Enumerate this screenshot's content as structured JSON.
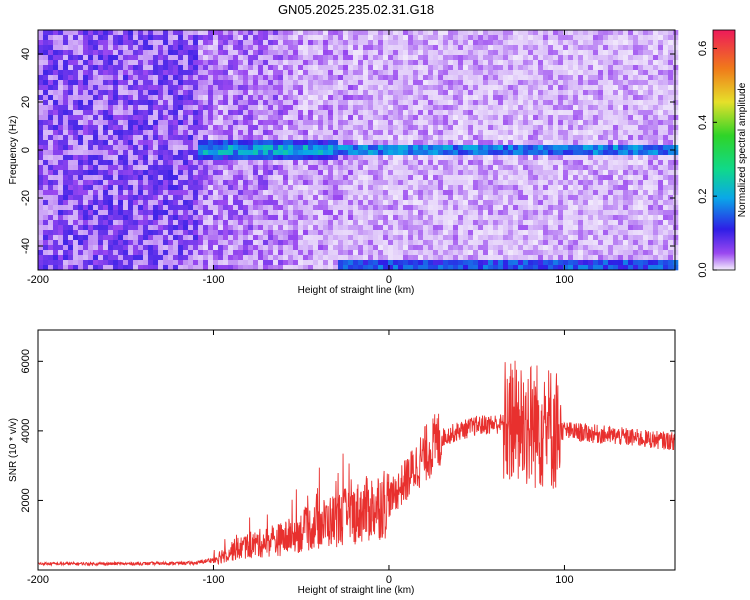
{
  "title": "GN05.2025.235.02.31.G18",
  "chart_data": [
    {
      "type": "heatmap",
      "xlabel": "Height of straight line (km)",
      "ylabel": "Frequency (Hz)",
      "xlim": [
        -200,
        163
      ],
      "ylim": [
        -50,
        50
      ],
      "xticks": [
        -200,
        -100,
        0,
        100
      ],
      "yticks": [
        -40,
        -20,
        0,
        20,
        40
      ],
      "colorbar": {
        "label": "Normalized spectral amplitude",
        "range": [
          0,
          0.65
        ],
        "ticks": [
          0.0,
          0.2,
          0.4,
          0.6
        ]
      },
      "features": [
        {
          "name": "main-line",
          "frequency": 0,
          "x_start": -110,
          "x_end": 163,
          "amplitude": 0.3
        },
        {
          "name": "alias-line",
          "frequency": -48,
          "x_start": -30,
          "x_end": 163,
          "amplitude": 0.25
        }
      ]
    },
    {
      "type": "line",
      "xlabel": "Height of straight line (km)",
      "ylabel": "SNR (10 * v/v)",
      "xlim": [
        -200,
        163
      ],
      "ylim": [
        0,
        6900
      ],
      "xticks": [
        -200,
        -100,
        0,
        100
      ],
      "yticks": [
        2000,
        4000,
        6000
      ],
      "color": "#e8302e",
      "series": [
        {
          "x": [
            -200,
            -150,
            -110,
            -100,
            -90,
            -80,
            -70,
            -60,
            -50,
            -40,
            -30,
            -20,
            -10,
            0,
            10,
            20,
            30,
            40,
            50,
            60,
            70,
            80,
            90,
            100,
            110,
            120,
            130,
            140,
            150,
            163
          ],
          "y": [
            180,
            180,
            200,
            300,
            550,
            700,
            800,
            900,
            1100,
            1300,
            1450,
            1600,
            1800,
            2000,
            2600,
            3300,
            3800,
            4000,
            4150,
            4200,
            4200,
            4200,
            4100,
            4000,
            3950,
            3900,
            3850,
            3800,
            3750,
            3700
          ]
        }
      ]
    }
  ]
}
